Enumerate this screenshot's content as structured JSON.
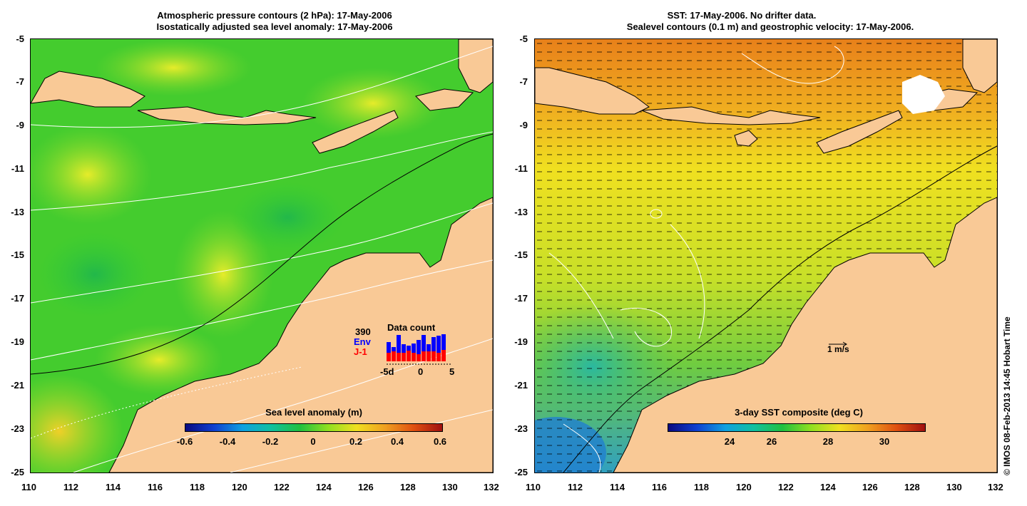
{
  "left_panel": {
    "title_line1": "Atmospheric pressure contours (2 hPa): 17-May-2006",
    "title_line2": "Isostatically adjusted sea level anomaly: 17-May-2006",
    "colorbar_title": "Sea level anomaly (m)",
    "colorbar_ticks": [
      "-0.6",
      "-0.4",
      "-0.2",
      "0",
      "0.2",
      "0.4",
      "0.6"
    ],
    "data_count": {
      "title": "Data count",
      "max_label": "390",
      "env_label": "Env",
      "j1_label": "J-1",
      "x_ticks": [
        "-5d",
        "0",
        "5"
      ]
    }
  },
  "right_panel": {
    "title_line1": "SST: 17-May-2006. No drifter data.",
    "title_line2": "Sealevel contours (0.1 m) and geostrophic velocity: 17-May-2006.",
    "colorbar_title": "3-day SST composite (deg C)",
    "colorbar_ticks": [
      "24",
      "26",
      "28",
      "30"
    ],
    "scale_label": "1 m/s"
  },
  "axes": {
    "x_ticks": [
      "110",
      "112",
      "114",
      "116",
      "118",
      "120",
      "122",
      "124",
      "126",
      "128",
      "130",
      "132"
    ],
    "y_ticks": [
      "-5",
      "-7",
      "-9",
      "-11",
      "-13",
      "-15",
      "-17",
      "-19",
      "-21",
      "-23",
      "-25"
    ]
  },
  "credit": "© IMOS 08-Feb-2013 14:45 Hobart Time",
  "colors": {
    "land": "#f9c996",
    "sea_green": "#33cc33",
    "sea_yellow": "#ddee22",
    "sst_orange": "#e8801a",
    "env_bar": "#0000ff",
    "j1_bar": "#ff0000"
  }
}
